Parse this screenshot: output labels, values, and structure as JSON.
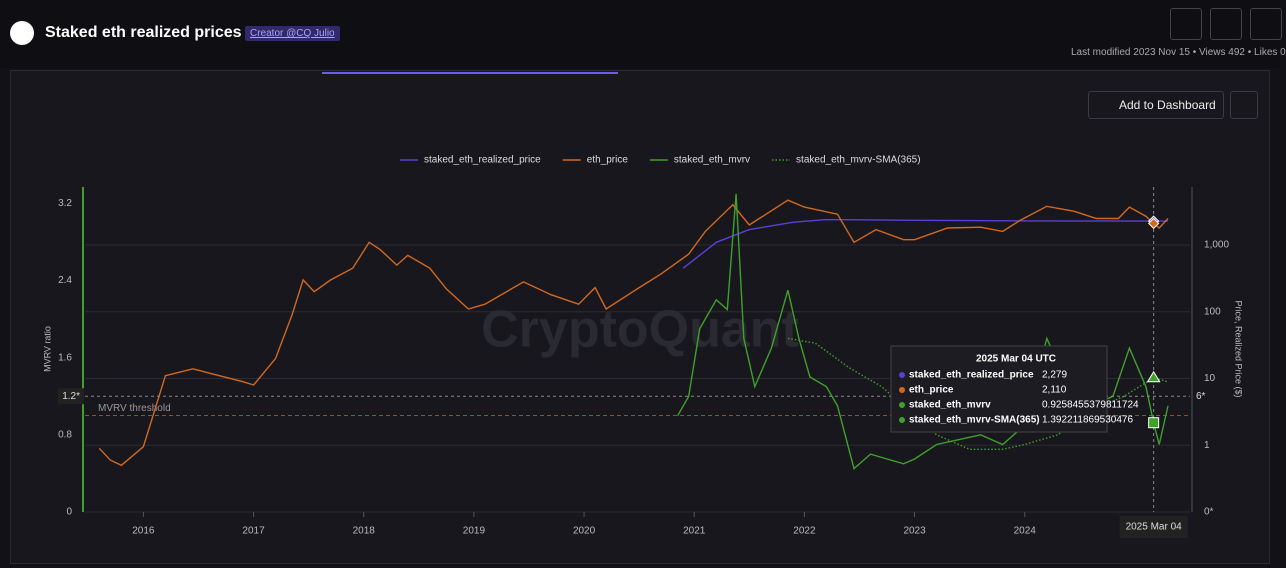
{
  "header": {
    "title": "Staked eth realized prices",
    "badge": "Creator @CQ Julio",
    "meta": "Last modified 2023 Nov 15 • Views 492 • Likes 0"
  },
  "toolbar": {
    "button": "Add to Dashboard"
  },
  "watermark": "CryptoQuant",
  "tooltip": {
    "title": "2025 Mar 04 UTC",
    "rows": [
      {
        "name": "staked_eth_realized_price",
        "value": "2,279"
      },
      {
        "name": "eth_price",
        "value": "2,110"
      },
      {
        "name": "staked_eth_mvrv",
        "value": "0.9258455379811724"
      },
      {
        "name": "staked_eth_mvrv-SMA(365)",
        "value": "1.392211869530476"
      }
    ]
  },
  "chart_data": {
    "type": "line",
    "y_label": "MVRV ratio",
    "y2_label": "Price, Realized Price ($)",
    "xlim": [
      2015.47,
      2025.5
    ],
    "xticks": [
      2016,
      2017,
      2018,
      2019,
      2020,
      2021,
      2022,
      2023,
      2024
    ],
    "ylim": [
      0,
      3.37
    ],
    "yticks": [
      0,
      0.8,
      1.6,
      2.4,
      3.2
    ],
    "y2lim": [
      0.1,
      7400
    ],
    "y2log": true,
    "y2ticks": [
      {
        "value": 0.1,
        "label": "0*"
      },
      1,
      10,
      100,
      {
        "value": 1000,
        "label": "1,000"
      }
    ],
    "grid": true,
    "threshold": {
      "value": 1,
      "label": "MVRV threshold",
      "color": "#c0392b"
    },
    "crosshair": {
      "x": 2025.17,
      "y": 1.2,
      "x_label": "2025 Mar 04",
      "y_label": "1.2*",
      "y2_label": "6*"
    },
    "series": [
      {
        "name": "staked_eth_realized_price",
        "color": "#5b3fd6",
        "axis": "y2",
        "style": "solid",
        "x": [
          2020.9,
          2021.2,
          2021.5,
          2021.9,
          2022.2,
          2023,
          2024,
          2025.17,
          2025.3
        ],
        "values": [
          450,
          1100,
          1700,
          2200,
          2400,
          2350,
          2300,
          2279,
          2280
        ]
      },
      {
        "name": "eth_price",
        "color": "#d2691e",
        "axis": "y2",
        "style": "solid",
        "x": [
          2015.6,
          2015.7,
          2015.8,
          2016.0,
          2016.2,
          2016.45,
          2016.6,
          2016.9,
          2017.0,
          2017.2,
          2017.35,
          2017.45,
          2017.55,
          2017.7,
          2017.9,
          2018.05,
          2018.15,
          2018.3,
          2018.4,
          2018.6,
          2018.75,
          2018.95,
          2019.1,
          2019.45,
          2019.7,
          2019.95,
          2020.1,
          2020.2,
          2020.5,
          2020.7,
          2020.95,
          2021.1,
          2021.35,
          2021.5,
          2021.85,
          2022.0,
          2022.3,
          2022.45,
          2022.65,
          2022.9,
          2023.0,
          2023.3,
          2023.6,
          2023.8,
          2023.95,
          2024.2,
          2024.45,
          2024.65,
          2024.85,
          2024.95,
          2025.1,
          2025.17,
          2025.22,
          2025.3
        ],
        "values": [
          0.9,
          0.6,
          0.5,
          0.95,
          11,
          14,
          12,
          9,
          8,
          20,
          90,
          300,
          200,
          300,
          450,
          1100,
          850,
          500,
          700,
          450,
          220,
          110,
          130,
          280,
          180,
          130,
          230,
          110,
          230,
          370,
          730,
          1600,
          4000,
          2000,
          4700,
          3700,
          2900,
          1100,
          1700,
          1200,
          1200,
          1800,
          1850,
          1600,
          2300,
          3800,
          3200,
          2500,
          2500,
          3700,
          2700,
          2110,
          1800,
          2500
        ]
      },
      {
        "name": "staked_eth_mvrv",
        "color": "#3fa12a",
        "axis": "y",
        "style": "solid",
        "x": [
          2020.85,
          2020.95,
          2021.05,
          2021.2,
          2021.3,
          2021.38,
          2021.45,
          2021.55,
          2021.7,
          2021.85,
          2021.95,
          2022.05,
          2022.2,
          2022.3,
          2022.45,
          2022.6,
          2022.75,
          2022.9,
          2023.0,
          2023.2,
          2023.4,
          2023.6,
          2023.8,
          2024.0,
          2024.2,
          2024.4,
          2024.6,
          2024.8,
          2024.95,
          2025.1,
          2025.17,
          2025.22,
          2025.3
        ],
        "values": [
          1.0,
          1.2,
          1.9,
          2.2,
          2.1,
          3.3,
          1.8,
          1.3,
          1.7,
          2.3,
          1.8,
          1.4,
          1.3,
          1.1,
          0.45,
          0.6,
          0.55,
          0.5,
          0.55,
          0.7,
          0.75,
          0.8,
          0.7,
          0.9,
          1.8,
          1.3,
          1.1,
          1.2,
          1.7,
          1.3,
          0.926,
          0.7,
          1.1
        ]
      },
      {
        "name": "staked_eth_mvrv-SMA(365)",
        "color": "#3fa12a",
        "axis": "y",
        "style": "dotted",
        "x": [
          2021.85,
          2022.1,
          2022.4,
          2022.7,
          2022.9,
          2023.2,
          2023.5,
          2023.8,
          2024.0,
          2024.3,
          2024.6,
          2024.9,
          2025.17,
          2025.3
        ],
        "values": [
          1.8,
          1.75,
          1.5,
          1.3,
          1.1,
          0.8,
          0.65,
          0.65,
          0.7,
          0.8,
          1.05,
          1.2,
          1.392,
          1.35
        ]
      }
    ]
  }
}
